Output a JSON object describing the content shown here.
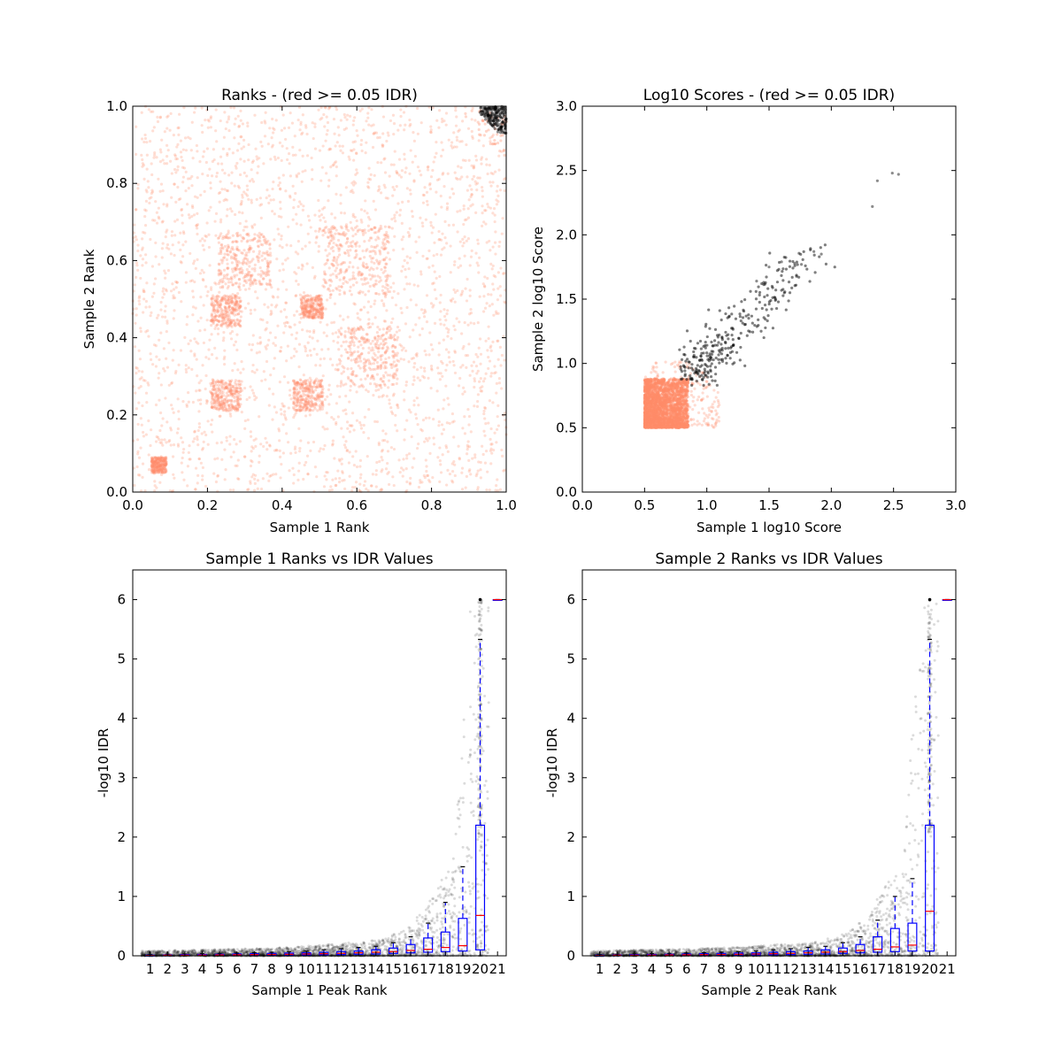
{
  "chart_data": [
    {
      "type": "scatter",
      "title": "Ranks - (red >= 0.05 IDR)",
      "xlabel": "Sample 1 Rank",
      "ylabel": "Sample 2 Rank",
      "xlim": [
        0.0,
        1.0
      ],
      "ylim": [
        0.0,
        1.0
      ],
      "xticks": [
        "0.0",
        "0.2",
        "0.4",
        "0.6",
        "0.8",
        "1.0"
      ],
      "yticks": [
        "0.0",
        "0.2",
        "0.4",
        "0.6",
        "0.8",
        "1.0"
      ],
      "grid": false,
      "legend": "none",
      "series": [
        {
          "color": "#ff8c69",
          "description": "peaks with IDR >= 0.05, spread uniformly over the unit square with denser rank blocks",
          "dense_blocks": [
            [
              0.3,
              0.6,
              0.07
            ],
            [
              0.6,
              0.6,
              0.09
            ],
            [
              0.25,
              0.25,
              0.04
            ],
            [
              0.48,
              0.48,
              0.03
            ],
            [
              0.63,
              0.35,
              0.08
            ],
            [
              0.07,
              0.07,
              0.02
            ],
            [
              0.47,
              0.25,
              0.04
            ],
            [
              0.25,
              0.47,
              0.04
            ]
          ]
        },
        {
          "color": "#000000",
          "description": "peaks with IDR < 0.05, clustered in top-right corner",
          "x_range": [
            0.93,
            1.0
          ],
          "y_range": [
            0.93,
            1.0
          ]
        }
      ]
    },
    {
      "type": "scatter",
      "title": "Log10 Scores - (red >= 0.05 IDR)",
      "xlabel": "Sample 1 log10 Score",
      "ylabel": "Sample 2 log10 Score",
      "xlim": [
        0.0,
        3.0
      ],
      "ylim": [
        0.0,
        3.0
      ],
      "xticks": [
        "0.0",
        "0.5",
        "1.0",
        "1.5",
        "2.0",
        "2.5",
        "3.0"
      ],
      "yticks": [
        "0.0",
        "0.5",
        "1.0",
        "1.5",
        "2.0",
        "2.5",
        "3.0"
      ],
      "grid": false,
      "legend": "none",
      "series": [
        {
          "color": "#ff8c69",
          "x_range": [
            0.5,
            1.1
          ],
          "y_range": [
            0.5,
            1.02
          ],
          "dense_core": [
            0.5,
            0.85,
            0.5,
            0.88
          ]
        },
        {
          "color": "#000000",
          "points_sample": [
            [
              2.33,
              2.22
            ],
            [
              2.37,
              2.42
            ],
            [
              2.49,
              2.48
            ],
            [
              2.54,
              2.47
            ],
            [
              1.92,
              1.85
            ],
            [
              1.86,
              1.87
            ],
            [
              1.76,
              1.77
            ],
            [
              1.6,
              1.79
            ],
            [
              1.5,
              1.75
            ],
            [
              1.4,
              1.64
            ]
          ],
          "cluster_x": [
            0.85,
            1.9
          ],
          "cluster_y": [
            0.9,
            1.9
          ]
        }
      ]
    },
    {
      "type": "box",
      "title": "Sample 1 Ranks vs IDR Values",
      "xlabel": "Sample 1 Peak Rank",
      "ylabel": "-log10 IDR",
      "ylim": [
        0,
        6.5
      ],
      "yticks": [
        "0",
        "1",
        "2",
        "3",
        "4",
        "5",
        "6"
      ],
      "categories": [
        "1",
        "2",
        "3",
        "4",
        "5",
        "6",
        "7",
        "8",
        "9",
        "10",
        "11",
        "12",
        "13",
        "14",
        "15",
        "16",
        "17",
        "18",
        "19",
        "20",
        "21"
      ],
      "boxes": [
        {
          "q1": 0.0,
          "median": 0.005,
          "q3": 0.01,
          "whisker_low": 0.0,
          "whisker_high": 0.02
        },
        {
          "q1": 0.0,
          "median": 0.01,
          "q3": 0.015,
          "whisker_low": 0.0,
          "whisker_high": 0.025
        },
        {
          "q1": 0.005,
          "median": 0.01,
          "q3": 0.02,
          "whisker_low": 0.0,
          "whisker_high": 0.03
        },
        {
          "q1": 0.005,
          "median": 0.012,
          "q3": 0.022,
          "whisker_low": 0.0,
          "whisker_high": 0.035
        },
        {
          "q1": 0.005,
          "median": 0.015,
          "q3": 0.025,
          "whisker_low": 0.0,
          "whisker_high": 0.04
        },
        {
          "q1": 0.008,
          "median": 0.018,
          "q3": 0.03,
          "whisker_low": 0.0,
          "whisker_high": 0.045
        },
        {
          "q1": 0.01,
          "median": 0.02,
          "q3": 0.035,
          "whisker_low": 0.0,
          "whisker_high": 0.05
        },
        {
          "q1": 0.01,
          "median": 0.022,
          "q3": 0.04,
          "whisker_low": 0.0,
          "whisker_high": 0.06
        },
        {
          "q1": 0.012,
          "median": 0.025,
          "q3": 0.045,
          "whisker_low": 0.0,
          "whisker_high": 0.07
        },
        {
          "q1": 0.015,
          "median": 0.03,
          "q3": 0.05,
          "whisker_low": 0.0,
          "whisker_high": 0.08
        },
        {
          "q1": 0.018,
          "median": 0.035,
          "q3": 0.06,
          "whisker_low": 0.0,
          "whisker_high": 0.1
        },
        {
          "q1": 0.02,
          "median": 0.04,
          "q3": 0.07,
          "whisker_low": 0.0,
          "whisker_high": 0.12
        },
        {
          "q1": 0.025,
          "median": 0.05,
          "q3": 0.08,
          "whisker_low": 0.0,
          "whisker_high": 0.14
        },
        {
          "q1": 0.03,
          "median": 0.06,
          "q3": 0.1,
          "whisker_low": 0.0,
          "whisker_high": 0.16
        },
        {
          "q1": 0.04,
          "median": 0.07,
          "q3": 0.13,
          "whisker_low": 0.0,
          "whisker_high": 0.22
        },
        {
          "q1": 0.05,
          "median": 0.09,
          "q3": 0.19,
          "whisker_low": 0.0,
          "whisker_high": 0.32
        },
        {
          "q1": 0.06,
          "median": 0.11,
          "q3": 0.3,
          "whisker_low": 0.0,
          "whisker_high": 0.55
        },
        {
          "q1": 0.07,
          "median": 0.14,
          "q3": 0.4,
          "whisker_low": 0.0,
          "whisker_high": 0.9
        },
        {
          "q1": 0.08,
          "median": 0.17,
          "q3": 0.63,
          "whisker_low": 0.0,
          "whisker_high": 1.5
        },
        {
          "q1": 0.1,
          "median": 0.68,
          "q3": 2.2,
          "whisker_low": 0.0,
          "whisker_high": 5.33
        },
        {
          "q1": 6.0,
          "median": 6.0,
          "q3": 6.0,
          "whisker_low": 6.0,
          "whisker_high": 6.0
        }
      ],
      "scatter_max": 6.0,
      "grid": false,
      "legend": "none"
    },
    {
      "type": "box",
      "title": "Sample 2 Ranks vs IDR Values",
      "xlabel": "Sample 2 Peak Rank",
      "ylabel": "-log10 IDR",
      "ylim": [
        0,
        6.5
      ],
      "yticks": [
        "0",
        "1",
        "2",
        "3",
        "4",
        "5",
        "6"
      ],
      "categories": [
        "1",
        "2",
        "3",
        "4",
        "5",
        "6",
        "7",
        "8",
        "9",
        "10",
        "11",
        "12",
        "13",
        "14",
        "15",
        "16",
        "17",
        "18",
        "19",
        "20",
        "21"
      ],
      "boxes": [
        {
          "q1": 0.0,
          "median": 0.005,
          "q3": 0.01,
          "whisker_low": 0.0,
          "whisker_high": 0.02
        },
        {
          "q1": 0.0,
          "median": 0.01,
          "q3": 0.015,
          "whisker_low": 0.0,
          "whisker_high": 0.025
        },
        {
          "q1": 0.005,
          "median": 0.01,
          "q3": 0.02,
          "whisker_low": 0.0,
          "whisker_high": 0.03
        },
        {
          "q1": 0.005,
          "median": 0.012,
          "q3": 0.022,
          "whisker_low": 0.0,
          "whisker_high": 0.035
        },
        {
          "q1": 0.005,
          "median": 0.015,
          "q3": 0.025,
          "whisker_low": 0.0,
          "whisker_high": 0.04
        },
        {
          "q1": 0.008,
          "median": 0.018,
          "q3": 0.03,
          "whisker_low": 0.0,
          "whisker_high": 0.045
        },
        {
          "q1": 0.01,
          "median": 0.02,
          "q3": 0.035,
          "whisker_low": 0.0,
          "whisker_high": 0.05
        },
        {
          "q1": 0.01,
          "median": 0.022,
          "q3": 0.04,
          "whisker_low": 0.0,
          "whisker_high": 0.06
        },
        {
          "q1": 0.012,
          "median": 0.025,
          "q3": 0.045,
          "whisker_low": 0.0,
          "whisker_high": 0.07
        },
        {
          "q1": 0.015,
          "median": 0.03,
          "q3": 0.05,
          "whisker_low": 0.0,
          "whisker_high": 0.08
        },
        {
          "q1": 0.018,
          "median": 0.035,
          "q3": 0.06,
          "whisker_low": 0.0,
          "whisker_high": 0.1
        },
        {
          "q1": 0.02,
          "median": 0.04,
          "q3": 0.07,
          "whisker_low": 0.0,
          "whisker_high": 0.12
        },
        {
          "q1": 0.025,
          "median": 0.05,
          "q3": 0.08,
          "whisker_low": 0.0,
          "whisker_high": 0.14
        },
        {
          "q1": 0.03,
          "median": 0.06,
          "q3": 0.1,
          "whisker_low": 0.0,
          "whisker_high": 0.16
        },
        {
          "q1": 0.04,
          "median": 0.07,
          "q3": 0.13,
          "whisker_low": 0.0,
          "whisker_high": 0.22
        },
        {
          "q1": 0.05,
          "median": 0.09,
          "q3": 0.19,
          "whisker_low": 0.0,
          "whisker_high": 0.32
        },
        {
          "q1": 0.06,
          "median": 0.11,
          "q3": 0.32,
          "whisker_low": 0.0,
          "whisker_high": 0.6
        },
        {
          "q1": 0.07,
          "median": 0.15,
          "q3": 0.46,
          "whisker_low": 0.0,
          "whisker_high": 1.0
        },
        {
          "q1": 0.08,
          "median": 0.18,
          "q3": 0.55,
          "whisker_low": 0.0,
          "whisker_high": 1.3
        },
        {
          "q1": 0.08,
          "median": 0.75,
          "q3": 2.2,
          "whisker_low": 0.0,
          "whisker_high": 5.33
        },
        {
          "q1": 6.0,
          "median": 6.0,
          "q3": 6.0,
          "whisker_low": 6.0,
          "whisker_high": 6.0
        }
      ],
      "scatter_max": 6.0,
      "grid": false,
      "legend": "none"
    }
  ],
  "colors": {
    "red_points": "#ff8c69",
    "black_points": "#000000",
    "box": "#0000ff",
    "median": "#ff0000",
    "cap": "#000000"
  }
}
